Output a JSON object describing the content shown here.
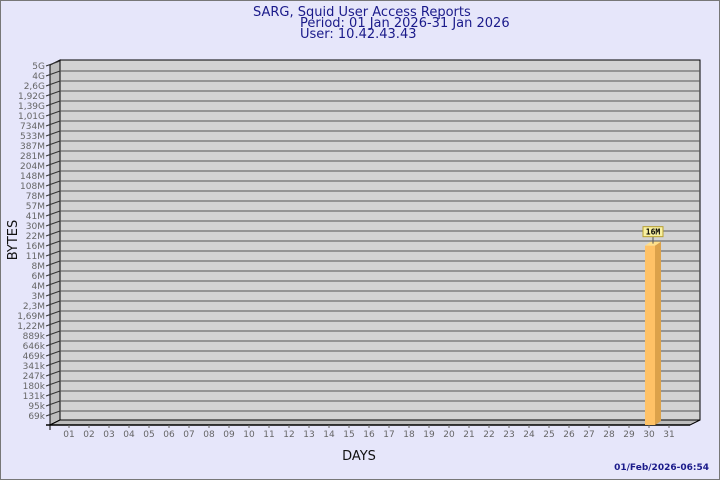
{
  "header": {
    "title": "SARG, Squid User Access Reports",
    "period": "Period: 01 Jan 2026-31 Jan 2026",
    "user": "User: 10.42.43.43"
  },
  "footer": {
    "timestamp": "01/Feb/2026-06:54"
  },
  "colors": {
    "background": "#e6e6fa",
    "plot": "#d3d3d3",
    "bar": "#ffc266",
    "bar_side": "#dca24a",
    "label_box": "#f8f0a0",
    "title": "#1a1a8a"
  },
  "chart_data": {
    "type": "bar",
    "xlabel": "DAYS",
    "ylabel": "BYTES",
    "categories": [
      "01",
      "02",
      "03",
      "04",
      "05",
      "06",
      "07",
      "08",
      "09",
      "10",
      "11",
      "12",
      "13",
      "14",
      "15",
      "16",
      "17",
      "18",
      "19",
      "20",
      "21",
      "22",
      "23",
      "24",
      "25",
      "26",
      "27",
      "28",
      "29",
      "30",
      "31"
    ],
    "y_tick_labels": [
      "5G",
      "4G",
      "2,6G",
      "1,92G",
      "1,39G",
      "1,01G",
      "734M",
      "533M",
      "387M",
      "281M",
      "204M",
      "148M",
      "108M",
      "78M",
      "57M",
      "41M",
      "30M",
      "22M",
      "16M",
      "11M",
      "8M",
      "6M",
      "4M",
      "3M",
      "2,3M",
      "1,69M",
      "1,22M",
      "889k",
      "646k",
      "469k",
      "341k",
      "247k",
      "180k",
      "131k",
      "95k",
      "69k"
    ],
    "y_scale": "log",
    "grid": true,
    "series": [
      {
        "values": [
          null,
          null,
          null,
          null,
          null,
          null,
          null,
          null,
          null,
          null,
          null,
          null,
          null,
          null,
          null,
          null,
          null,
          null,
          null,
          null,
          null,
          null,
          null,
          null,
          null,
          null,
          null,
          null,
          null,
          "16M",
          null
        ]
      }
    ]
  }
}
